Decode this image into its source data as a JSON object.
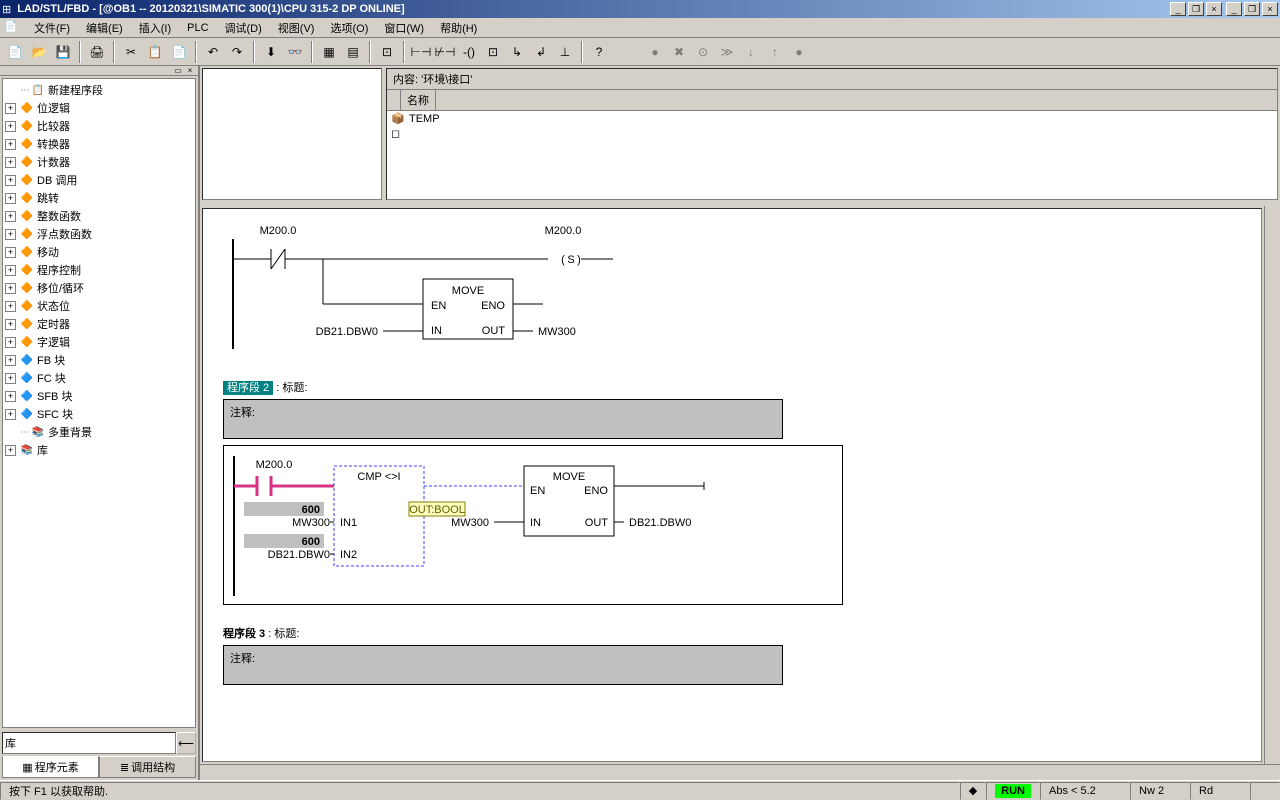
{
  "title": "LAD/STL/FBD  - [@OB1 -- 20120321\\SIMATIC 300(1)\\CPU 315-2 DP  ONLINE]",
  "menu": [
    "文件(F)",
    "编辑(E)",
    "插入(I)",
    "PLC",
    "调试(D)",
    "视图(V)",
    "选项(O)",
    "窗口(W)",
    "帮助(H)"
  ],
  "tree": [
    {
      "expand": "",
      "icon": "📋",
      "label": "新建程序段",
      "indent": 0,
      "dots": true
    },
    {
      "expand": "+",
      "icon": "🔶",
      "label": "位逻辑",
      "indent": 0
    },
    {
      "expand": "+",
      "icon": "🔶",
      "label": "比较器",
      "indent": 0
    },
    {
      "expand": "+",
      "icon": "🔶",
      "label": "转换器",
      "indent": 0
    },
    {
      "expand": "+",
      "icon": "🔶",
      "label": "计数器",
      "indent": 0
    },
    {
      "expand": "+",
      "icon": "🔶",
      "label": "DB 调用",
      "indent": 0
    },
    {
      "expand": "+",
      "icon": "🔶",
      "label": "跳转",
      "indent": 0
    },
    {
      "expand": "+",
      "icon": "🔶",
      "label": "整数函数",
      "indent": 0
    },
    {
      "expand": "+",
      "icon": "🔶",
      "label": "浮点数函数",
      "indent": 0
    },
    {
      "expand": "+",
      "icon": "🔶",
      "label": "移动",
      "indent": 0
    },
    {
      "expand": "+",
      "icon": "🔶",
      "label": "程序控制",
      "indent": 0
    },
    {
      "expand": "+",
      "icon": "🔶",
      "label": "移位/循环",
      "indent": 0
    },
    {
      "expand": "+",
      "icon": "🔶",
      "label": "状态位",
      "indent": 0
    },
    {
      "expand": "+",
      "icon": "🔶",
      "label": "定时器",
      "indent": 0
    },
    {
      "expand": "+",
      "icon": "🔶",
      "label": "字逻辑",
      "indent": 0
    },
    {
      "expand": "+",
      "icon": "🔷",
      "label": "FB 块",
      "indent": 0
    },
    {
      "expand": "+",
      "icon": "🔷",
      "label": "FC 块",
      "indent": 0
    },
    {
      "expand": "+",
      "icon": "🔷",
      "label": "SFB 块",
      "indent": 0
    },
    {
      "expand": "+",
      "icon": "🔷",
      "label": "SFC 块",
      "indent": 0
    },
    {
      "expand": "",
      "icon": "📚",
      "label": "多重背景",
      "indent": 0,
      "dots": true
    },
    {
      "expand": "+",
      "icon": "📚",
      "label": "库",
      "indent": 0
    }
  ],
  "sidebar_search_label": "库",
  "sidebar_tabs": [
    "程序元素",
    "调用结构"
  ],
  "content_header": "内容:   '环境\\接口'",
  "name_header": "名称",
  "temp_row": "TEMP",
  "network1": {
    "m_left": "M200.0",
    "m_right": "M200.0",
    "coil": "S",
    "block": "MOVE",
    "en": "EN",
    "eno": "ENO",
    "in_label": "IN",
    "out_label": "OUT",
    "in_val": "DB21.DBW0",
    "out_val": "MW300"
  },
  "network2": {
    "seg_label": "程序段 2",
    "seg_title": ": 标题:",
    "comment": "注释:",
    "m_top": "M200.0",
    "cmp_title": "CMP <>I",
    "val1": "600",
    "in1": "IN1",
    "in1_label": "MW300",
    "val2": "600",
    "in2": "IN2",
    "in2_label": "DB21.DBW0",
    "out_bool": "OUT:BOOL",
    "move": "MOVE",
    "en": "EN",
    "eno": "ENO",
    "move_in": "IN",
    "move_out": "OUT",
    "move_in_val": "MW300",
    "move_out_val": "DB21.DBW0"
  },
  "network3": {
    "seg_label": "程序段 3",
    "seg_title": ": 标题:",
    "comment": "注释:"
  },
  "status": {
    "help": "按下 F1 以获取帮助.",
    "run": "RUN",
    "abs": "Abs < 5.2",
    "nw": "Nw 2",
    "rd": "Rd"
  },
  "colors": {
    "titlebar_start": "#0a246a",
    "titlebar_end": "#a6caf0",
    "bg": "#d4d0c8",
    "active_line": "#d63384",
    "online_value": "#c0c0c0",
    "dashed": "#4040ff"
  }
}
